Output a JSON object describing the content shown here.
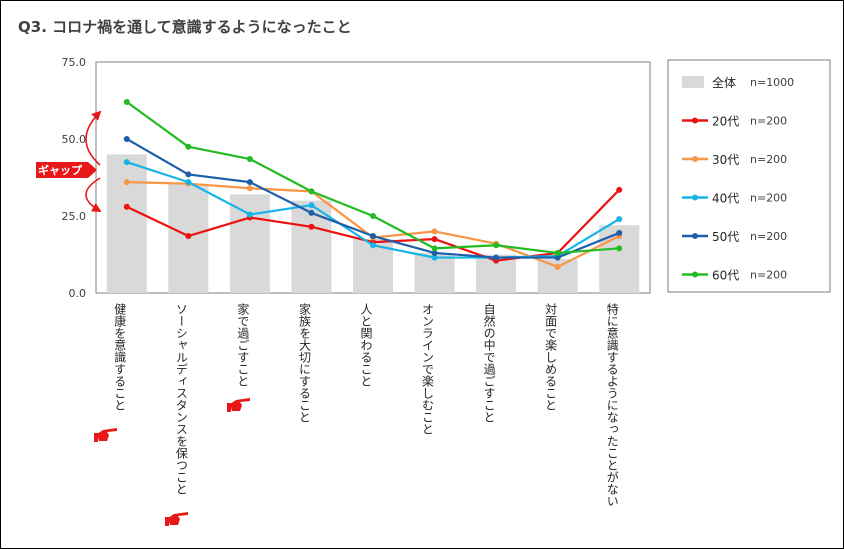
{
  "chart_data": {
    "type": "bar",
    "title": "Q3. コロナ禍を通して意識するようになったこと",
    "categories": [
      "健康を意識すること",
      "ソーシャルディスタンスを保つこと",
      "家で過ごすこと",
      "家族を大切にすること",
      "人と関わること",
      "オンラインで楽しむこと",
      "自然の中で過ごすこと",
      "対面で楽しめること",
      "特に意識するようになったことがない"
    ],
    "ylim": [
      0,
      75
    ],
    "yticks": [
      "0.0",
      "25.0",
      "50.0",
      "75.0"
    ],
    "yticks_values": [
      0,
      25,
      50,
      75
    ],
    "grid": false,
    "legend_position": "right",
    "bar_series": {
      "name": "全体",
      "n": "n=1000",
      "color": "#d9d9d9",
      "values": [
        45,
        35.5,
        32,
        30,
        17.5,
        13,
        12.5,
        11,
        22
      ]
    },
    "series": [
      {
        "name": "20代",
        "n": "n=200",
        "color": "#ee1111",
        "values": [
          28,
          18.5,
          24.5,
          21.5,
          16.5,
          17.5,
          10.5,
          13,
          33.5
        ]
      },
      {
        "name": "30代",
        "n": "n=200",
        "color": "#f79646",
        "values": [
          36,
          35.5,
          34,
          33,
          18,
          20,
          16,
          8.5,
          18.5
        ]
      },
      {
        "name": "40代",
        "n": "n=200",
        "color": "#16b4e8",
        "values": [
          42.5,
          36,
          25.5,
          28.5,
          15.5,
          11.5,
          11.5,
          12,
          24
        ]
      },
      {
        "name": "50代",
        "n": "n=200",
        "color": "#1f5ea8",
        "values": [
          50,
          38.5,
          36,
          26,
          18.5,
          13,
          11.5,
          11.5,
          19.5
        ]
      },
      {
        "name": "60代",
        "n": "n=200",
        "color": "#22bb22",
        "values": [
          62,
          47.5,
          43.5,
          33,
          25,
          14.5,
          15.5,
          13,
          14.5
        ]
      }
    ]
  },
  "annotation": {
    "label": "ギャップ",
    "color": "#e81818"
  },
  "icons": {
    "pointer": "pointing-hand-icon"
  }
}
